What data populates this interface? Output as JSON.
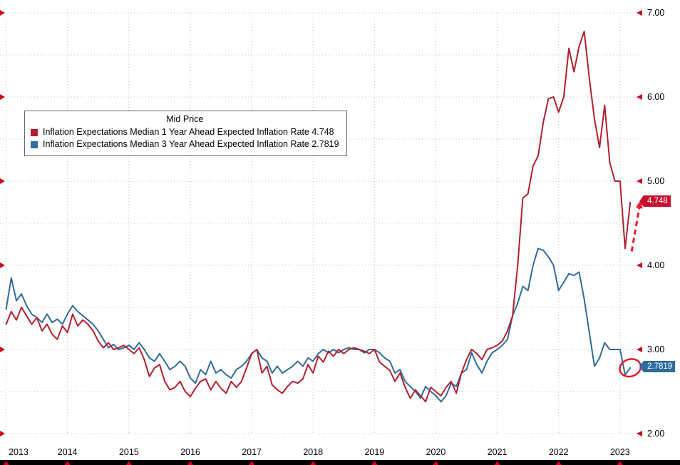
{
  "legend": {
    "title": "Mid Price",
    "items": [
      {
        "label": "Inflation Expectations Median 1 Year Ahead Expected Inflation Rate 4.748",
        "color": "#b2202e"
      },
      {
        "label": "Inflation Expectations Median 3 Year Ahead Expected Inflation Rate 2.7819",
        "color": "#2e6b9e"
      }
    ]
  },
  "price_labels": [
    {
      "text": "4.748",
      "value": 4.748,
      "color": "#c8102e"
    },
    {
      "text": "2.7819",
      "value": 2.7819,
      "color": "#2e6b9e"
    }
  ],
  "chart_data": {
    "type": "line",
    "title": "Mid Price",
    "x_unit": "month",
    "x_start": "2013-01",
    "x_end": "2023-03",
    "x_tick_labels": [
      "2013",
      "2014",
      "2015",
      "2016",
      "2017",
      "2018",
      "2019",
      "2020",
      "2021",
      "2022",
      "2023"
    ],
    "ylim": [
      2.0,
      7.0
    ],
    "y_tick_values": [
      2,
      3,
      4,
      5,
      6,
      7
    ],
    "y_tick_labels": [
      "2.00",
      "3.00",
      "4.00",
      "5.00",
      "6.00",
      "7.00"
    ],
    "grid": "dotted",
    "grid_y_step": 0.5,
    "legend_position": "top-left",
    "series": [
      {
        "name": "Inflation Expectations Median 1 Year Ahead Expected Inflation Rate",
        "color": "#b2202e",
        "last_value": 4.748,
        "values": [
          3.3,
          3.45,
          3.35,
          3.5,
          3.4,
          3.3,
          3.38,
          3.22,
          3.3,
          3.18,
          3.12,
          3.28,
          3.2,
          3.42,
          3.28,
          3.35,
          3.3,
          3.22,
          3.1,
          3.02,
          3.08,
          3.0,
          3.02,
          3.05,
          3.0,
          2.95,
          3.02,
          2.88,
          2.68,
          2.78,
          2.82,
          2.62,
          2.52,
          2.55,
          2.62,
          2.5,
          2.44,
          2.54,
          2.62,
          2.65,
          2.52,
          2.62,
          2.54,
          2.48,
          2.62,
          2.55,
          2.62,
          2.78,
          2.95,
          3.0,
          2.72,
          2.8,
          2.58,
          2.52,
          2.48,
          2.56,
          2.62,
          2.6,
          2.65,
          2.82,
          2.72,
          2.92,
          2.85,
          2.98,
          2.92,
          3.0,
          2.95,
          3.0,
          3.02,
          3.0,
          2.98,
          2.95,
          3.0,
          2.85,
          2.8,
          2.75,
          2.62,
          2.72,
          2.55,
          2.42,
          2.52,
          2.45,
          2.38,
          2.55,
          2.5,
          2.45,
          2.55,
          2.62,
          2.48,
          2.72,
          2.88,
          3.0,
          2.95,
          2.88,
          3.0,
          3.02,
          3.05,
          3.1,
          3.22,
          3.4,
          4.0,
          4.8,
          4.85,
          5.18,
          5.3,
          5.7,
          5.98,
          6.0,
          5.82,
          6.0,
          6.58,
          6.3,
          6.6,
          6.78,
          6.22,
          5.74,
          5.4,
          5.9,
          5.22,
          5.0,
          5.0,
          4.2,
          4.748
        ]
      },
      {
        "name": "Inflation Expectations Median 3 Year Ahead Expected Inflation Rate",
        "color": "#2e6b9e",
        "last_value": 2.7819,
        "values": [
          3.48,
          3.85,
          3.58,
          3.66,
          3.52,
          3.42,
          3.38,
          3.32,
          3.42,
          3.32,
          3.36,
          3.3,
          3.42,
          3.52,
          3.45,
          3.4,
          3.35,
          3.3,
          3.22,
          3.12,
          3.02,
          3.06,
          3.0,
          3.02,
          3.05,
          3.0,
          3.08,
          3.0,
          2.9,
          2.86,
          2.95,
          2.86,
          2.76,
          2.8,
          2.86,
          2.8,
          2.66,
          2.6,
          2.76,
          2.7,
          2.86,
          2.72,
          2.76,
          2.7,
          2.66,
          2.76,
          2.8,
          2.86,
          2.95,
          3.0,
          2.9,
          2.86,
          2.72,
          2.8,
          2.72,
          2.76,
          2.8,
          2.86,
          2.8,
          2.9,
          2.86,
          2.95,
          3.0,
          2.96,
          3.0,
          2.96,
          3.0,
          3.02,
          3.0,
          3.0,
          2.96,
          3.0,
          3.0,
          2.96,
          2.9,
          2.86,
          2.72,
          2.76,
          2.62,
          2.56,
          2.5,
          2.42,
          2.56,
          2.5,
          2.45,
          2.38,
          2.45,
          2.6,
          2.56,
          2.72,
          2.76,
          2.96,
          2.82,
          2.72,
          2.86,
          2.96,
          3.0,
          3.05,
          3.12,
          3.4,
          3.55,
          3.75,
          3.7,
          4.0,
          4.2,
          4.18,
          4.1,
          4.0,
          3.7,
          3.8,
          3.9,
          3.88,
          3.92,
          3.6,
          3.2,
          2.8,
          2.9,
          3.08,
          3.0,
          3.0,
          3.0,
          2.7,
          2.7819
        ]
      }
    ],
    "annotations": [
      {
        "type": "ellipse",
        "anchor": "last-point-of-3-year-series",
        "color": "#e8192c"
      },
      {
        "type": "arrow",
        "style": "dashed",
        "direction": "up-right",
        "anchor": "end-of-1-year-series",
        "color": "#e8192c"
      }
    ]
  }
}
